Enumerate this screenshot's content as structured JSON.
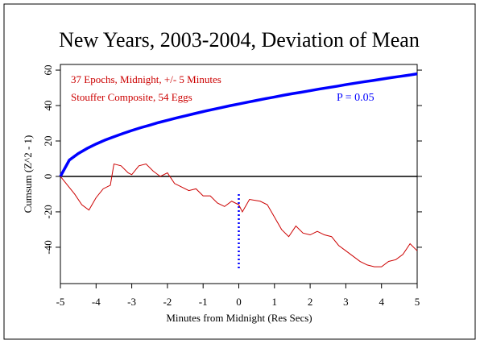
{
  "chart_data": {
    "type": "line",
    "title": "New Years, 2003-2004, Deviation of Mean",
    "xlabel": "Minutes from Midnight (Res Secs)",
    "ylabel": "Cumsum (Z^2 - 1)",
    "annotations": [
      {
        "text": "37 Epochs, Midnight, +/- 5 Minutes",
        "color": "#cc0000"
      },
      {
        "text": "Stouffer Composite, 54 Eggs",
        "color": "#cc0000"
      }
    ],
    "xlim": [
      -5,
      5
    ],
    "ylim": [
      -60.5,
      63.2
    ],
    "xticks": [
      -5,
      -4,
      -3,
      -2,
      -1,
      0,
      1,
      2,
      3,
      4,
      5
    ],
    "yticks": [
      -40,
      -20,
      0,
      20,
      40,
      60
    ],
    "hline": {
      "y": 0,
      "color": "#000000"
    },
    "marker_line": {
      "x": 0,
      "y": [
        -10,
        -53
      ],
      "color": "#0000ff"
    },
    "series": [
      {
        "name": "P = 0.05",
        "color": "#0000ff",
        "x": [
          -5,
          -4.75,
          -4.5,
          -4.25,
          -4,
          -3.75,
          -3.5,
          -3.25,
          -3,
          -2.75,
          -2.5,
          -2.25,
          -2,
          -1.75,
          -1.5,
          -1.25,
          -1,
          -0.75,
          -0.5,
          -0.25,
          0,
          0.25,
          0.5,
          0.75,
          1,
          1.25,
          1.5,
          1.75,
          2,
          2.25,
          2.5,
          2.75,
          3,
          3.25,
          3.5,
          3.75,
          4,
          4.25,
          4.5,
          4.75,
          5
        ],
        "values": [
          0,
          9.2,
          12.9,
          15.8,
          18.3,
          20.5,
          22.4,
          24.2,
          25.9,
          27.5,
          28.9,
          30.4,
          31.7,
          33.0,
          34.2,
          35.4,
          36.6,
          37.7,
          38.8,
          39.9,
          40.9,
          41.9,
          42.9,
          43.9,
          44.8,
          45.8,
          46.7,
          47.5,
          48.4,
          49.3,
          50.1,
          50.9,
          51.8,
          52.6,
          53.4,
          54.1,
          54.9,
          55.7,
          56.4,
          57.1,
          57.9
        ]
      },
      {
        "color": "#cc0000",
        "x": [
          -5,
          -4.8,
          -4.6,
          -4.4,
          -4.2,
          -4.0,
          -3.8,
          -3.6,
          -3.5,
          -3.3,
          -3.1,
          -3.0,
          -2.8,
          -2.6,
          -2.4,
          -2.2,
          -2.0,
          -1.8,
          -1.6,
          -1.4,
          -1.2,
          -1.0,
          -0.8,
          -0.6,
          -0.4,
          -0.2,
          0,
          0.1,
          0.3,
          0.6,
          0.8,
          1.0,
          1.2,
          1.4,
          1.6,
          1.8,
          2.0,
          2.2,
          2.4,
          2.6,
          2.8,
          3.0,
          3.2,
          3.4,
          3.6,
          3.8,
          4.0,
          4.2,
          4.4,
          4.6,
          4.8,
          5.0
        ],
        "values": [
          0,
          -5,
          -10,
          -16,
          -19,
          -12,
          -7,
          -5,
          7,
          6,
          2,
          1,
          6,
          7,
          3,
          0,
          2,
          -4,
          -6,
          -8,
          -7,
          -11,
          -11,
          -15,
          -17,
          -14,
          -16,
          -20,
          -13,
          -14,
          -16,
          -23,
          -30,
          -34,
          -28,
          -32,
          -33,
          -31,
          -33,
          -34,
          -39,
          -42,
          -45,
          -48,
          -50,
          -51,
          -51,
          -48,
          -47,
          -44,
          -38,
          -42
        ]
      }
    ]
  }
}
